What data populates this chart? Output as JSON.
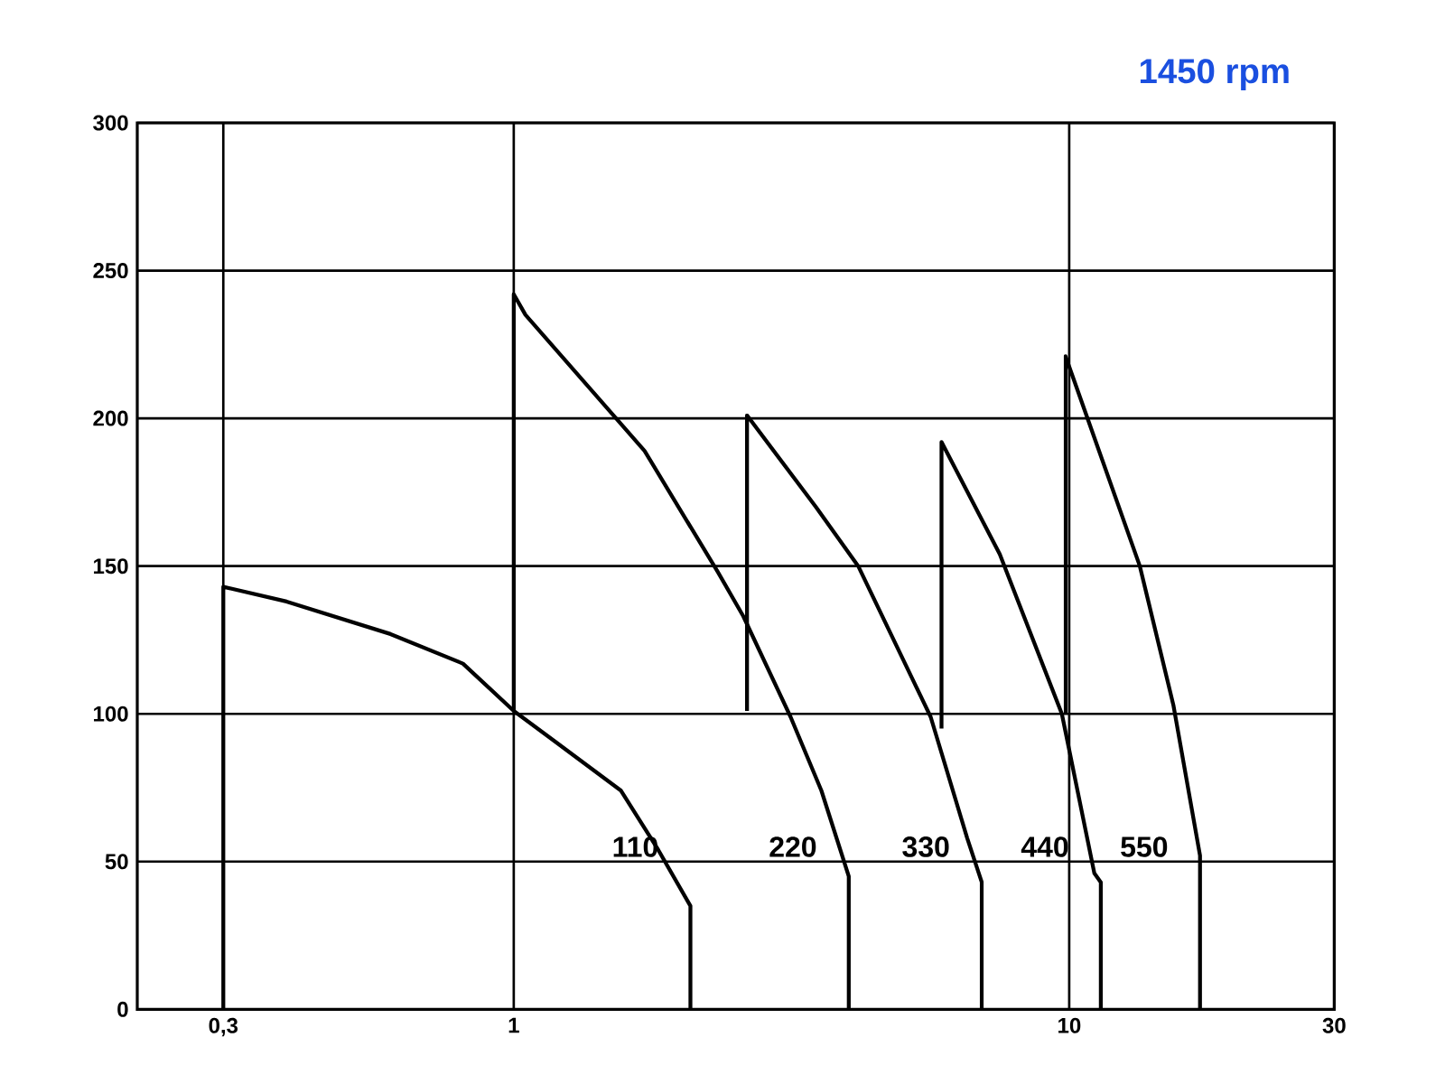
{
  "chart_data": {
    "type": "line",
    "title": "1450 rpm",
    "log": "x",
    "grid": true,
    "line_style": "solid",
    "marker": "none",
    "xlim": [
      0.21,
      30
    ],
    "ylim": [
      0,
      300
    ],
    "xticks": [
      {
        "value": 0.3,
        "label": "0,3"
      },
      1,
      10,
      30
    ],
    "yticks": [
      0,
      50,
      100,
      150,
      200,
      250,
      300
    ],
    "series": [
      {
        "name": "110",
        "color": "#000000",
        "x": [
          0.3,
          0.3,
          0.39,
          0.6,
          0.81,
          1,
          1.18,
          1.56,
          1.82,
          2.08,
          2.08
        ],
        "values": [
          0,
          143,
          138,
          127,
          117,
          101,
          91,
          74,
          54,
          35,
          0
        ]
      },
      {
        "name": "220",
        "color": "#000000",
        "x": [
          1,
          1,
          1.05,
          1.72,
          2.33,
          2.59,
          3.15,
          3.58,
          4.01,
          4.01
        ],
        "values": [
          101,
          242,
          235,
          189,
          148,
          133,
          99,
          74,
          45,
          0
        ]
      },
      {
        "name": "330",
        "color": "#000000",
        "x": [
          2.63,
          2.63,
          3.5,
          4.17,
          5.63,
          6.55,
          6.96,
          6.96
        ],
        "values": [
          101,
          201,
          170,
          150,
          99,
          58,
          43,
          0
        ]
      },
      {
        "name": "440",
        "color": "#000000",
        "x": [
          5.89,
          5.89,
          7.5,
          9.7,
          11.1,
          11.4,
          11.4
        ],
        "values": [
          95,
          192,
          154,
          100,
          46,
          43,
          0
        ]
      },
      {
        "name": "550",
        "color": "#000000",
        "x": [
          9.85,
          9.85,
          13.4,
          15.4,
          17.2,
          17.2
        ],
        "values": [
          100,
          221,
          150,
          103,
          52,
          0
        ]
      }
    ]
  }
}
